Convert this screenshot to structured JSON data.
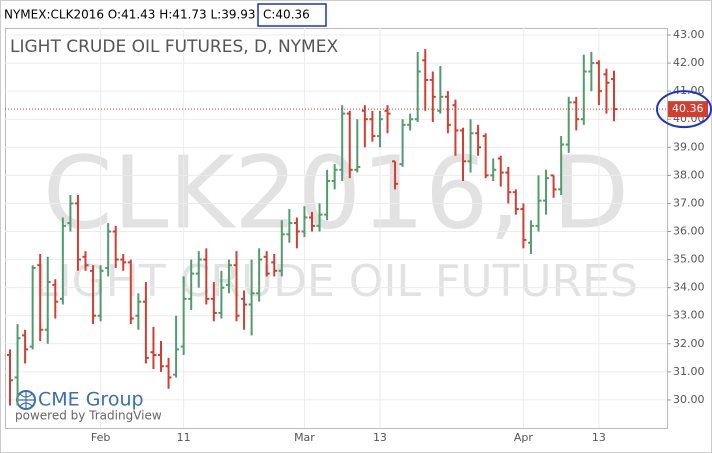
{
  "header": {
    "symbol": "NYMEX:CLK2016 O:41.43 H:41.73 L:39.93",
    "close": "C:40.36"
  },
  "chart_data": {
    "type": "ohlc",
    "title": "LIGHT CRUDE OIL FUTURES, D, NYMEX",
    "watermark": [
      "CLK2016, D",
      "LIGHT CRUDE OIL FUTURES"
    ],
    "logo": "CME Group",
    "credit": "powered by TradingView",
    "up_color": "#529b6c",
    "down_color": "#d23f31",
    "grid": true,
    "categories": [
      null,
      null,
      null,
      null,
      null,
      null,
      null,
      null,
      null,
      null,
      null,
      null,
      "Feb",
      null,
      null,
      null,
      null,
      null,
      null,
      null,
      null,
      null,
      null,
      "11",
      null,
      null,
      null,
      null,
      null,
      null,
      null,
      null,
      null,
      null,
      null,
      null,
      null,
      null,
      null,
      "Mar",
      null,
      null,
      null,
      null,
      null,
      null,
      null,
      null,
      null,
      "13",
      null,
      null,
      null,
      null,
      null,
      null,
      null,
      null,
      null,
      null,
      null,
      null,
      null,
      null,
      null,
      null,
      null,
      null,
      "Apr",
      null,
      null,
      null,
      null,
      null,
      null,
      null,
      null,
      null,
      "13",
      null,
      null
    ],
    "open": [
      31.6,
      30.8,
      32.3,
      31.9,
      34.8,
      32.5,
      34.1,
      33.6,
      36.3,
      37.0,
      35.1,
      34.6,
      33.0,
      34.7,
      36.0,
      35.0,
      34.9,
      33.0,
      33.5,
      31.7,
      31.6,
      31.2,
      30.9,
      31.9,
      33.6,
      34.5,
      35.0,
      33.6,
      33.1,
      34.1,
      34.8,
      33.6,
      33.4,
      33.8,
      35.1,
      34.9,
      34.6,
      35.9,
      36.3,
      36.0,
      36.5,
      36.2,
      36.6,
      37.8,
      38.2,
      40.2,
      38.2,
      40.3,
      40.0,
      39.4,
      40.3,
      38.5,
      38.4,
      39.8,
      40.0,
      42.1,
      41.4,
      40.3,
      40.8,
      40.5,
      39.6,
      38.5,
      39.5,
      39.4,
      38.0,
      38.6,
      38.1,
      37.4,
      36.8,
      35.6,
      36.2,
      37.1,
      38.0,
      37.5,
      39.1,
      40.6,
      40.0,
      41.7,
      42.0,
      41.6,
      41.43
    ],
    "high": [
      31.8,
      32.7,
      32.5,
      34.8,
      35.2,
      35.1,
      34.3,
      36.5,
      37.3,
      37.3,
      35.3,
      34.8,
      34.8,
      36.3,
      36.2,
      35.2,
      35.0,
      33.8,
      34.2,
      32.6,
      32.1,
      31.5,
      33.0,
      34.4,
      35.0,
      35.3,
      35.4,
      34.2,
      34.6,
      35.0,
      35.3,
      33.9,
      35.0,
      35.4,
      35.3,
      35.2,
      36.4,
      36.8,
      36.5,
      36.9,
      36.7,
      37.0,
      38.2,
      38.4,
      40.5,
      40.3,
      40.0,
      40.5,
      40.3,
      40.3,
      40.5,
      38.5,
      40.0,
      40.2,
      42.4,
      42.5,
      41.7,
      41.9,
      41.0,
      40.7,
      39.7,
      40.0,
      39.8,
      39.5,
      38.6,
      38.7,
      38.3,
      37.5,
      37.0,
      36.4,
      38.0,
      38.2,
      38.0,
      39.4,
      40.8,
      40.8,
      42.3,
      42.4,
      42.1,
      41.8,
      41.73
    ],
    "low": [
      29.8,
      29.8,
      31.3,
      31.8,
      32.1,
      32.0,
      32.9,
      33.4,
      36.0,
      34.6,
      34.6,
      32.7,
      32.8,
      34.4,
      34.7,
      34.6,
      32.7,
      32.5,
      31.3,
      31.1,
      31.0,
      30.4,
      30.8,
      31.6,
      33.2,
      34.0,
      33.4,
      32.8,
      32.9,
      33.8,
      32.8,
      32.5,
      32.3,
      33.5,
      34.4,
      34.4,
      34.4,
      35.6,
      35.4,
      35.8,
      36.0,
      36.0,
      36.4,
      37.5,
      37.8,
      37.9,
      38.1,
      39.0,
      39.2,
      39.0,
      39.5,
      37.5,
      38.3,
      39.6,
      39.9,
      40.3,
      39.9,
      40.2,
      39.5,
      38.7,
      37.8,
      38.1,
      38.7,
      37.9,
      37.8,
      37.6,
      37.0,
      36.6,
      35.4,
      35.2,
      36.0,
      36.6,
      37.2,
      37.3,
      38.8,
      39.6,
      39.8,
      41.0,
      40.5,
      40.2,
      39.93
    ],
    "close": [
      30.7,
      32.2,
      31.8,
      34.7,
      32.5,
      34.2,
      33.5,
      36.2,
      37.0,
      35.0,
      34.8,
      33.0,
      34.6,
      36.0,
      35.0,
      34.9,
      32.9,
      33.5,
      31.5,
      31.6,
      31.2,
      30.8,
      31.8,
      33.6,
      34.5,
      35.0,
      33.6,
      33.1,
      34.0,
      34.8,
      33.0,
      33.4,
      33.8,
      35.0,
      34.5,
      34.6,
      35.9,
      36.3,
      36.0,
      36.5,
      36.2,
      36.6,
      37.8,
      38.2,
      40.2,
      38.2,
      38.3,
      40.0,
      39.4,
      40.0,
      40.2,
      37.7,
      39.8,
      40.0,
      41.7,
      41.4,
      40.8,
      40.8,
      39.8,
      39.6,
      38.5,
      39.5,
      39.0,
      38.0,
      38.2,
      38.1,
      37.4,
      36.8,
      35.7,
      36.2,
      37.1,
      37.9,
      37.5,
      39.1,
      40.6,
      40.0,
      41.7,
      42.0,
      41.0,
      41.3,
      40.36
    ],
    "last_price": 40.36,
    "ylim": [
      29,
      43.25
    ],
    "yticks": [
      {
        "value": 30,
        "label": "30.00"
      },
      {
        "value": 31,
        "label": "31.00"
      },
      {
        "value": 32,
        "label": "32.00"
      },
      {
        "value": 33,
        "label": "33.00"
      },
      {
        "value": 34,
        "label": "34.00"
      },
      {
        "value": 35,
        "label": "35.00"
      },
      {
        "value": 36,
        "label": "36.00"
      },
      {
        "value": 37,
        "label": "37.00"
      },
      {
        "value": 38,
        "label": "38.00"
      },
      {
        "value": 39,
        "label": "39.00"
      },
      {
        "value": 40,
        "label": "40.00"
      },
      {
        "value": 41,
        "label": "41.00"
      },
      {
        "value": 42,
        "label": "42.00"
      },
      {
        "value": 43,
        "label": "43.00"
      }
    ]
  }
}
